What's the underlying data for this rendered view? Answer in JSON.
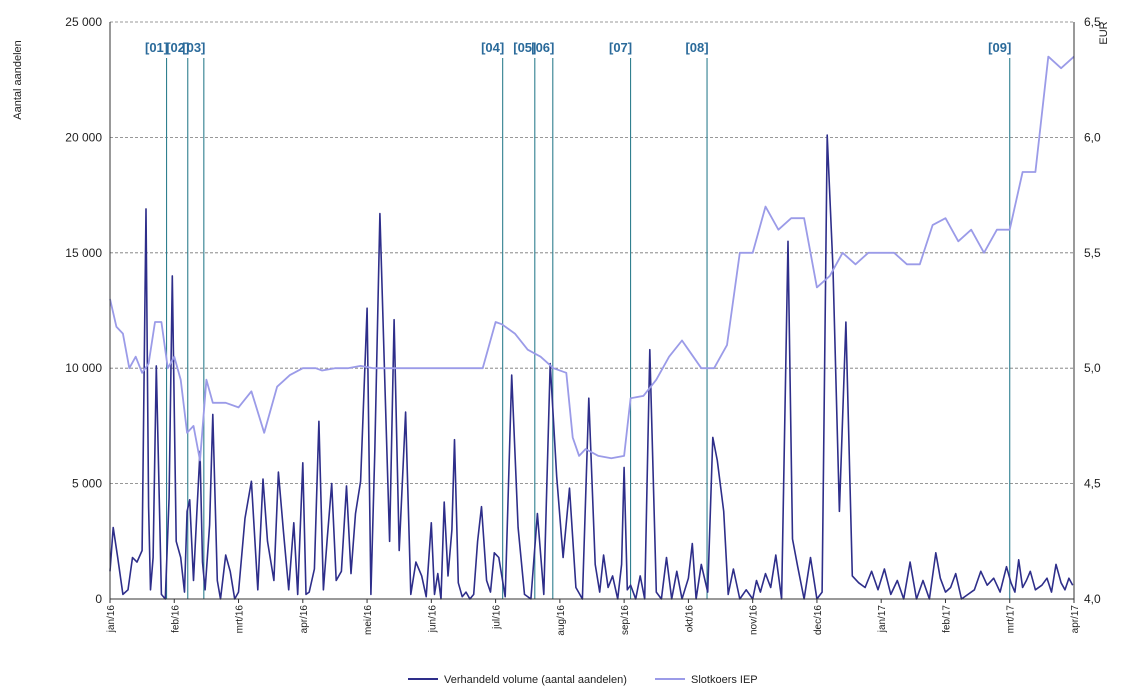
{
  "chart_data": {
    "type": "line",
    "ylabel_left": "Aantal aandelen",
    "ylabel_right": "EUR",
    "ylim_left": [
      0,
      25000
    ],
    "ylim_right": [
      4.0,
      6.5
    ],
    "yticks_left": [
      "0",
      "5 000",
      "10 000",
      "15 000",
      "20 000",
      "25 000"
    ],
    "yticks_right": [
      "4,0",
      "4,5",
      "5,0",
      "5,5",
      "6,0",
      "6,5"
    ],
    "xticks": [
      "jan/16",
      "feb/16",
      "mrt/16",
      "apr/16",
      "mei/16",
      "jun/16",
      "jul/16",
      "aug/16",
      "sep/16",
      "okt/16",
      "nov/16",
      "dec/16",
      "jan/17",
      "feb/17",
      "mrt/17",
      "apr/17"
    ],
    "grid": "horizontal dashed",
    "legend_position": "bottom",
    "events": [
      {
        "label": "[01]",
        "month": 0.88
      },
      {
        "label": "[02]",
        "month": 1.21
      },
      {
        "label": "[03]",
        "month": 1.46
      },
      {
        "label": "[04]",
        "month": 6.11
      },
      {
        "label": "[05]",
        "month": 6.61
      },
      {
        "label": "[06]",
        "month": 6.89
      },
      {
        "label": "[07]",
        "month": 8.1
      },
      {
        "label": "[08]",
        "month": 9.29
      },
      {
        "label": "[09]",
        "month": 14.0
      }
    ],
    "series": [
      {
        "name": "Verhandeld volume (aantal aandelen)",
        "axis": "left",
        "color": "#2e2e8a",
        "x": [
          0.0,
          0.05,
          0.12,
          0.2,
          0.28,
          0.35,
          0.42,
          0.5,
          0.56,
          0.6,
          0.63,
          0.67,
          0.72,
          0.8,
          0.86,
          0.92,
          0.97,
          1.03,
          1.1,
          1.16,
          1.2,
          1.24,
          1.3,
          1.35,
          1.4,
          1.44,
          1.48,
          1.55,
          1.6,
          1.67,
          1.72,
          1.8,
          1.87,
          1.94,
          2.0,
          2.1,
          2.2,
          2.3,
          2.38,
          2.45,
          2.55,
          2.62,
          2.7,
          2.78,
          2.86,
          2.92,
          3.0,
          3.05,
          3.1,
          3.18,
          3.25,
          3.32,
          3.38,
          3.45,
          3.52,
          3.6,
          3.68,
          3.75,
          3.82,
          3.9,
          4.0,
          4.06,
          4.12,
          4.2,
          4.28,
          4.35,
          4.42,
          4.5,
          4.6,
          4.68,
          4.76,
          4.85,
          4.92,
          5.0,
          5.05,
          5.1,
          5.15,
          5.2,
          5.26,
          5.32,
          5.36,
          5.42,
          5.48,
          5.54,
          5.6,
          5.66,
          5.72,
          5.78,
          5.86,
          5.92,
          5.98,
          6.05,
          6.15,
          6.25,
          6.35,
          6.45,
          6.55,
          6.65,
          6.75,
          6.85,
          6.95,
          7.05,
          7.15,
          7.25,
          7.35,
          7.45,
          7.55,
          7.62,
          7.68,
          7.75,
          7.82,
          7.9,
          7.96,
          8.0,
          8.05,
          8.1,
          8.18,
          8.25,
          8.32,
          8.4,
          8.5,
          8.58,
          8.66,
          8.74,
          8.82,
          8.9,
          9.0,
          9.06,
          9.12,
          9.2,
          9.3,
          9.38,
          9.45,
          9.55,
          9.62,
          9.7,
          9.8,
          9.9,
          10.0,
          10.06,
          10.12,
          10.2,
          10.28,
          10.36,
          10.45,
          10.55,
          10.62,
          10.7,
          10.8,
          10.9,
          11.0,
          11.08,
          11.16,
          11.25,
          11.35,
          11.45,
          11.55,
          11.65,
          11.75,
          11.85,
          11.95,
          12.05,
          12.15,
          12.25,
          12.35,
          12.45,
          12.55,
          12.65,
          12.75,
          12.85,
          12.92,
          13.0,
          13.08,
          13.16,
          13.25,
          13.35,
          13.45,
          13.55,
          13.65,
          13.75,
          13.85,
          13.95,
          14.02,
          14.08,
          14.14,
          14.2,
          14.26,
          14.32,
          14.4,
          14.5,
          14.58,
          14.65,
          14.72,
          14.8,
          14.86,
          14.92,
          14.98
        ],
        "values": [
          1200,
          3100,
          1800,
          200,
          400,
          1800,
          1600,
          2100,
          16900,
          4000,
          400,
          1800,
          10100,
          200,
          0,
          4400,
          14000,
          2500,
          1800,
          300,
          3800,
          4300,
          800,
          3700,
          6400,
          1600,
          400,
          3200,
          8000,
          800,
          0,
          1900,
          1200,
          0,
          300,
          3500,
          5100,
          400,
          5200,
          2500,
          800,
          5500,
          2900,
          400,
          3300,
          200,
          5900,
          200,
          300,
          1300,
          7700,
          400,
          2600,
          5000,
          800,
          1200,
          4900,
          1100,
          3700,
          5100,
          12600,
          200,
          6400,
          16700,
          9000,
          2500,
          12100,
          2100,
          8100,
          200,
          1600,
          1000,
          100,
          3300,
          200,
          1100,
          0,
          4200,
          1000,
          3000,
          6900,
          700,
          100,
          300,
          0,
          200,
          2500,
          4000,
          800,
          300,
          2000,
          1800,
          100,
          9700,
          3100,
          200,
          0,
          3700,
          200,
          10200,
          5300,
          1800,
          4800,
          500,
          0,
          8700,
          1500,
          300,
          1900,
          500,
          1000,
          0,
          1500,
          5700,
          400,
          600,
          0,
          1000,
          0,
          10800,
          300,
          0,
          1800,
          0,
          1200,
          0,
          900,
          2400,
          0,
          1500,
          300,
          7000,
          6000,
          3800,
          200,
          1300,
          0,
          400,
          0,
          800,
          300,
          1100,
          500,
          1900,
          0,
          15500,
          2600,
          1400,
          0,
          1800,
          0,
          300,
          20100,
          14300,
          3800,
          12000,
          1000,
          700,
          500,
          1200,
          400,
          1300,
          200,
          800,
          0,
          1600,
          0,
          800,
          0,
          2000,
          900,
          300,
          500,
          1100,
          0,
          200,
          400,
          1200,
          600,
          900,
          300,
          1400,
          700,
          300,
          1700,
          500,
          800,
          1200,
          400,
          600,
          900,
          300,
          1500,
          700,
          400,
          900,
          600
        ],
        "note_override": null
      },
      {
        "name": "Slotkoers IEP",
        "axis": "right",
        "color": "#9b9be8",
        "x": [
          0.0,
          0.1,
          0.2,
          0.3,
          0.4,
          0.5,
          0.6,
          0.7,
          0.8,
          0.9,
          1.0,
          1.1,
          1.2,
          1.3,
          1.4,
          1.5,
          1.6,
          1.8,
          2.0,
          2.2,
          2.4,
          2.6,
          2.8,
          3.0,
          3.2,
          3.3,
          3.5,
          3.7,
          3.9,
          4.1,
          4.3,
          4.6,
          4.9,
          5.2,
          5.5,
          5.8,
          6.0,
          6.1,
          6.3,
          6.5,
          6.7,
          6.9,
          7.1,
          7.2,
          7.3,
          7.4,
          7.6,
          7.8,
          8.0,
          8.1,
          8.3,
          8.5,
          8.7,
          8.9,
          9.0,
          9.2,
          9.4,
          9.6,
          9.8,
          10.0,
          10.2,
          10.4,
          10.6,
          10.8,
          11.0,
          11.2,
          11.4,
          11.6,
          11.8,
          12.0,
          12.2,
          12.4,
          12.6,
          12.8,
          13.0,
          13.2,
          13.4,
          13.6,
          13.8,
          14.0,
          14.2,
          14.4,
          14.6,
          14.8,
          15.0
        ],
        "values": [
          5.3,
          5.18,
          5.15,
          5.0,
          5.05,
          4.98,
          5.02,
          5.2,
          5.2,
          5.0,
          5.05,
          4.95,
          4.72,
          4.75,
          4.6,
          4.95,
          4.85,
          4.85,
          4.83,
          4.9,
          4.72,
          4.92,
          4.97,
          5.0,
          5.0,
          4.99,
          5.0,
          5.0,
          5.01,
          5.0,
          5.0,
          5.0,
          5.0,
          5.0,
          5.0,
          5.0,
          5.2,
          5.19,
          5.15,
          5.08,
          5.05,
          5.0,
          4.98,
          4.7,
          4.62,
          4.65,
          4.62,
          4.61,
          4.62,
          4.87,
          4.88,
          4.95,
          5.05,
          5.12,
          5.08,
          5.0,
          5.0,
          5.1,
          5.5,
          5.5,
          5.7,
          5.6,
          5.65,
          5.65,
          5.35,
          5.4,
          5.5,
          5.45,
          5.5,
          5.5,
          5.5,
          5.45,
          5.45,
          5.62,
          5.65,
          5.55,
          5.6,
          5.5,
          5.6,
          5.6,
          5.85,
          5.85,
          6.35,
          6.3,
          6.35
        ]
      }
    ]
  }
}
